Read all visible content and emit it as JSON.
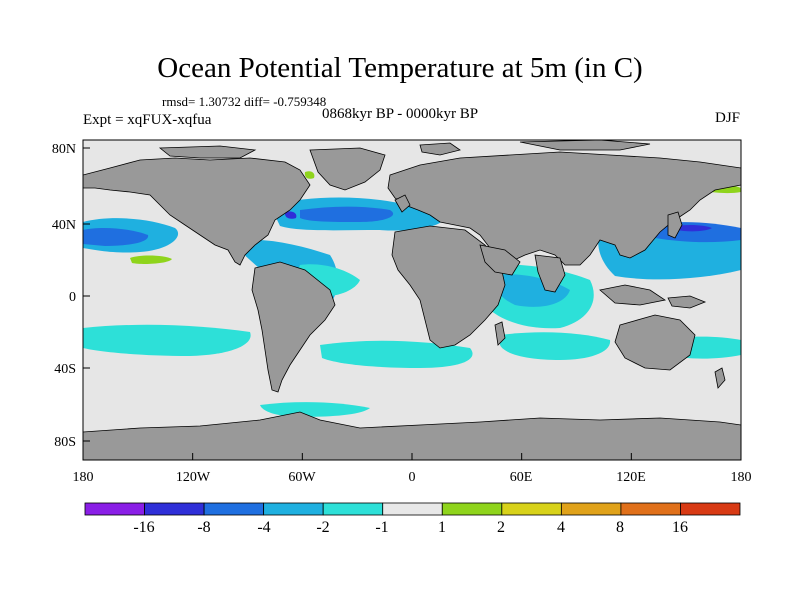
{
  "title": "Ocean Potential Temperature at 5m (in C)",
  "stats": "rmsd= 1.30732 diff= -0.759348",
  "experiment": "Expt = xqFUX-xqfua",
  "period": "0868kyr BP - 0000kyr BP",
  "season": "DJF",
  "axes": {
    "y_ticks": [
      "80N",
      "40N",
      "0",
      "40S",
      "80S"
    ],
    "x_ticks": [
      "180",
      "120W",
      "60W",
      "0",
      "60E",
      "120E",
      "180"
    ]
  },
  "colorbar": {
    "labels": [
      "-16",
      "-8",
      "-4",
      "-2",
      "-1",
      "1",
      "2",
      "4",
      "8",
      "16"
    ],
    "colors": [
      "#8a1ee6",
      "#2f2fd8",
      "#1f6fe0",
      "#1fb0e0",
      "#2de0d8",
      "#e8e8e8",
      "#8fd41c",
      "#d8d21a",
      "#e0a21a",
      "#e0701a",
      "#d83a14"
    ]
  },
  "colors": {
    "ocean_neutral": "#e6e6e6",
    "land": "#999999",
    "coast": "#000000"
  }
}
